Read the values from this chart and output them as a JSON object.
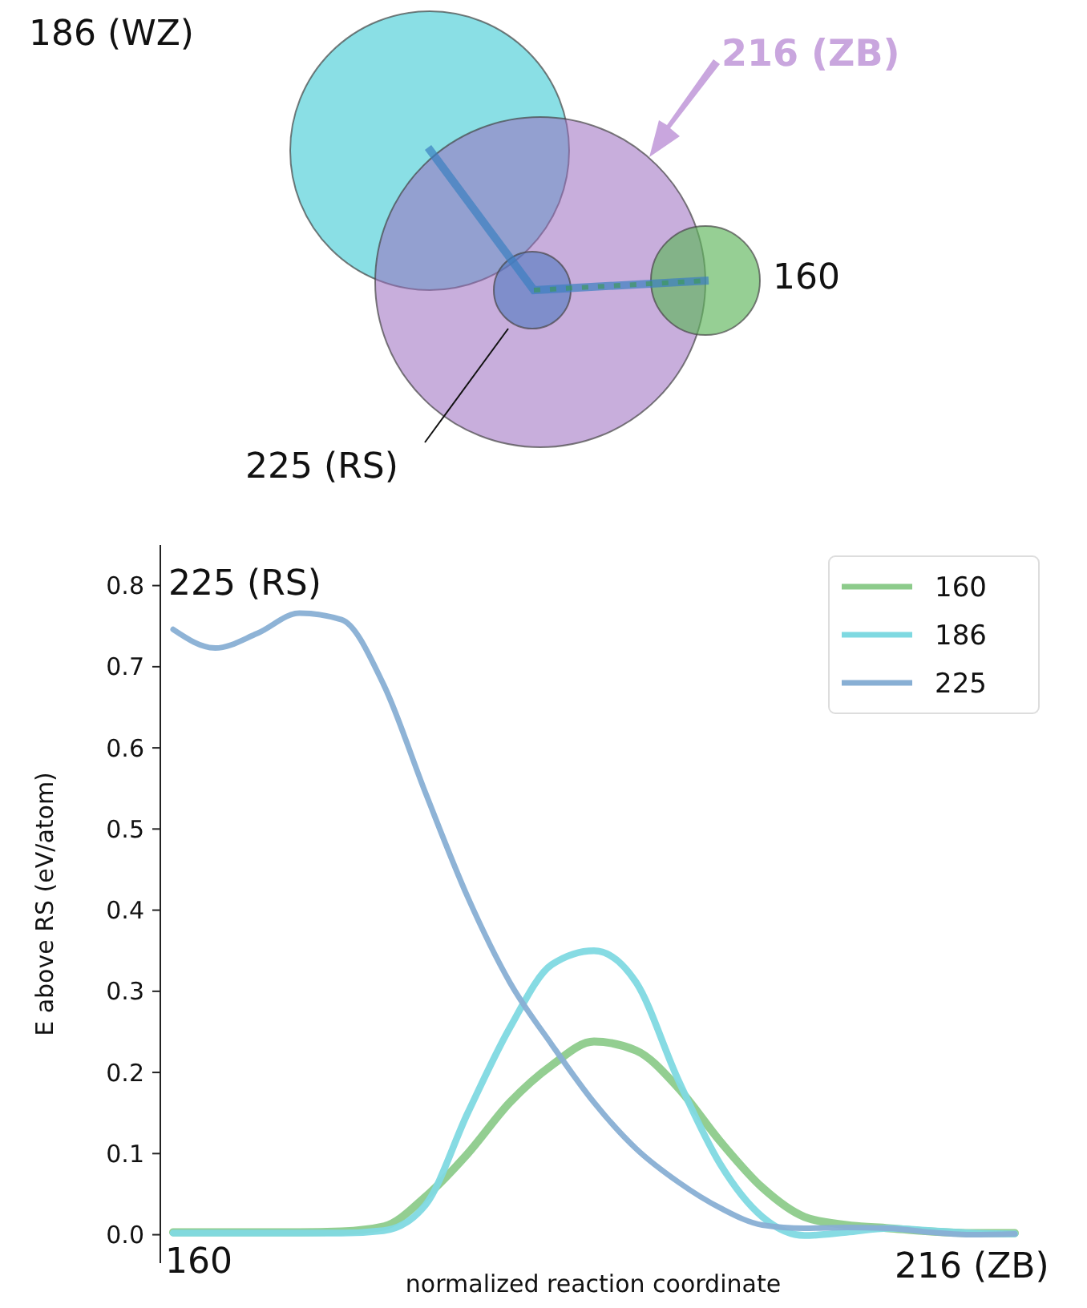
{
  "chart_data": [
    {
      "type": "other",
      "annotations": [
        "186 (WZ)",
        "216 (ZB)",
        "160",
        "225 (RS)"
      ]
    },
    {
      "type": "line",
      "ylabel": "E above RS (eV/atom)",
      "xlabel": "normalized reaction coordinate",
      "categories": [
        null,
        null,
        null,
        null,
        null,
        null,
        null,
        null,
        null,
        null,
        null,
        null,
        null,
        null,
        null,
        null,
        null,
        null,
        null,
        null,
        null
      ],
      "series": [
        {
          "name": "160",
          "color": "#8dcb8b",
          "values": [
            0.003,
            0.003,
            0.003,
            0.003,
            0.004,
            0.01,
            0.047,
            0.1,
            0.163,
            0.209,
            0.238,
            0.227,
            0.181,
            0.115,
            0.058,
            0.022,
            0.012,
            0.008,
            0.004,
            0.002,
            0.002
          ]
        },
        {
          "name": "186",
          "color": "#7fd9e1",
          "values": [
            0.002,
            0.002,
            0.002,
            0.002,
            0.002,
            0.005,
            0.037,
            0.15,
            0.255,
            0.333,
            0.35,
            0.311,
            0.191,
            0.087,
            0.022,
            -0.001,
            0.003,
            0.008,
            0.005,
            0.002,
            0.001
          ]
        },
        {
          "name": "225",
          "color": "#88afd4",
          "values": [
            0.746,
            0.723,
            0.741,
            0.766,
            0.758,
            0.678,
            0.544,
            0.416,
            0.311,
            0.234,
            0.163,
            0.106,
            0.065,
            0.033,
            0.012,
            0.008,
            0.009,
            0.008,
            0.003,
            0.0,
            0.001
          ]
        }
      ],
      "ylim": [
        -0.035,
        0.85
      ],
      "yticks": [
        {
          "value": 0,
          "label": "0.0"
        },
        0.1,
        0.2,
        0.3,
        0.4,
        0.5,
        0.6,
        0.7,
        0.8
      ],
      "legend": "top right",
      "annotations": [
        "225 (RS)",
        "160",
        "216 (ZB)"
      ]
    }
  ]
}
